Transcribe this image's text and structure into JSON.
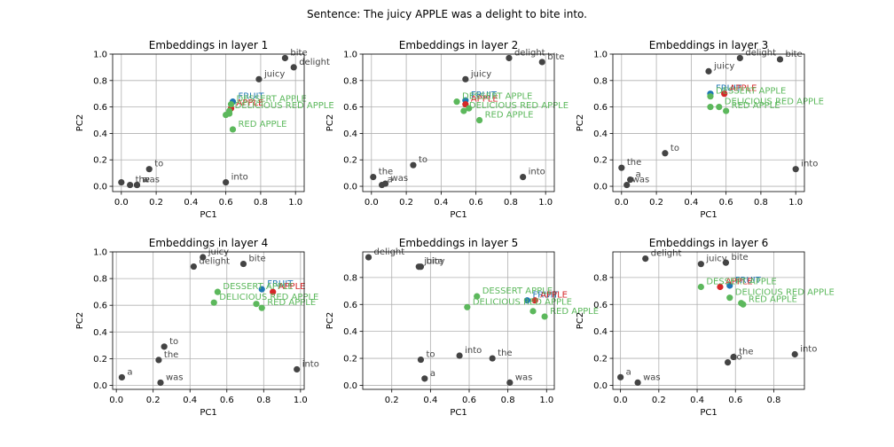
{
  "figure": {
    "title": "Sentence: The juicy APPLE was a delight to bite into."
  },
  "colors": {
    "word": "#444444",
    "fruit": "#1f77b4",
    "apple": "#d62728",
    "phrase": "#5cb85c"
  },
  "chart_data": [
    {
      "type": "scatter",
      "title": "Embeddings in layer 1",
      "xlabel": "PC1",
      "ylabel": "PC2",
      "xlim": [
        -0.05,
        1.05
      ],
      "ylim": [
        -0.04,
        1.0
      ],
      "xticks": [
        0.0,
        0.2,
        0.4,
        0.6,
        0.8,
        1.0
      ],
      "xtick_labels": [
        "0.0",
        "0.2",
        "0.4",
        "0.6",
        "0.8",
        "1.0"
      ],
      "yticks": [
        0.0,
        0.2,
        0.4,
        0.6,
        0.8,
        1.0
      ],
      "ytick_labels": [
        "0.0",
        "0.2",
        "0.4",
        "0.6",
        "0.8",
        "1.0"
      ],
      "grid": true,
      "points": [
        {
          "label": "the",
          "x": 0.05,
          "y": 0.01,
          "kind": "word"
        },
        {
          "label": "",
          "x": 0.0,
          "y": 0.03,
          "kind": "word"
        },
        {
          "label": "a",
          "x": 0.09,
          "y": 0.01,
          "kind": "word"
        },
        {
          "label": "was",
          "x": 0.09,
          "y": 0.01,
          "kind": "word"
        },
        {
          "label": "to",
          "x": 0.16,
          "y": 0.13,
          "kind": "word"
        },
        {
          "label": "into",
          "x": 0.6,
          "y": 0.03,
          "kind": "word"
        },
        {
          "label": "juicy",
          "x": 0.79,
          "y": 0.81,
          "kind": "word"
        },
        {
          "label": "bite",
          "x": 0.94,
          "y": 0.97,
          "kind": "word"
        },
        {
          "label": "delight",
          "x": 0.99,
          "y": 0.9,
          "kind": "word"
        },
        {
          "label": "FRUIT",
          "x": 0.64,
          "y": 0.64,
          "kind": "fruit"
        },
        {
          "label": "APPLE",
          "x": 0.63,
          "y": 0.59,
          "kind": "apple"
        },
        {
          "label": "DESSERT APPLE",
          "x": 0.63,
          "y": 0.62,
          "kind": "phrase"
        },
        {
          "label": "DELICIOUS RED APPLE",
          "x": 0.62,
          "y": 0.57,
          "kind": "phrase"
        },
        {
          "label": "",
          "x": 0.6,
          "y": 0.54,
          "kind": "phrase"
        },
        {
          "label": "",
          "x": 0.62,
          "y": 0.55,
          "kind": "phrase"
        },
        {
          "label": "RED APPLE",
          "x": 0.64,
          "y": 0.43,
          "kind": "phrase"
        }
      ]
    },
    {
      "type": "scatter",
      "title": "Embeddings in layer 2",
      "xlabel": "PC1",
      "ylabel": "PC2",
      "xlim": [
        -0.05,
        1.05
      ],
      "ylim": [
        -0.04,
        1.0
      ],
      "xticks": [
        0.0,
        0.2,
        0.4,
        0.6,
        0.8,
        1.0
      ],
      "xtick_labels": [
        "0.0",
        "0.2",
        "0.4",
        "0.6",
        "0.8",
        "1.0"
      ],
      "yticks": [
        0.0,
        0.2,
        0.4,
        0.6,
        0.8,
        1.0
      ],
      "ytick_labels": [
        "0.0",
        "0.2",
        "0.4",
        "0.6",
        "0.8",
        "1.0"
      ],
      "grid": true,
      "points": [
        {
          "label": "the",
          "x": 0.01,
          "y": 0.07,
          "kind": "word"
        },
        {
          "label": "a",
          "x": 0.06,
          "y": 0.01,
          "kind": "word"
        },
        {
          "label": "was",
          "x": 0.08,
          "y": 0.02,
          "kind": "word"
        },
        {
          "label": "to",
          "x": 0.24,
          "y": 0.16,
          "kind": "word"
        },
        {
          "label": "juicy",
          "x": 0.54,
          "y": 0.81,
          "kind": "word"
        },
        {
          "label": "delight",
          "x": 0.79,
          "y": 0.97,
          "kind": "word"
        },
        {
          "label": "bite",
          "x": 0.98,
          "y": 0.94,
          "kind": "word"
        },
        {
          "label": "into",
          "x": 0.87,
          "y": 0.07,
          "kind": "word"
        },
        {
          "label": "FRUIT",
          "x": 0.54,
          "y": 0.65,
          "kind": "fruit"
        },
        {
          "label": "APPLE",
          "x": 0.54,
          "y": 0.62,
          "kind": "apple"
        },
        {
          "label": "DESSERT APPLE",
          "x": 0.49,
          "y": 0.64,
          "kind": "phrase"
        },
        {
          "label": "DELICIOUS RED APPLE",
          "x": 0.53,
          "y": 0.57,
          "kind": "phrase"
        },
        {
          "label": "",
          "x": 0.56,
          "y": 0.59,
          "kind": "phrase"
        },
        {
          "label": "RED APPLE",
          "x": 0.62,
          "y": 0.5,
          "kind": "phrase"
        }
      ]
    },
    {
      "type": "scatter",
      "title": "Embeddings in layer 3",
      "xlabel": "PC1",
      "ylabel": "PC2",
      "xlim": [
        -0.05,
        1.05
      ],
      "ylim": [
        -0.04,
        1.0
      ],
      "xticks": [
        0.0,
        0.2,
        0.4,
        0.6,
        0.8,
        1.0
      ],
      "xtick_labels": [
        "0.0",
        "0.2",
        "0.4",
        "0.6",
        "0.8",
        "1.0"
      ],
      "yticks": [
        0.0,
        0.2,
        0.4,
        0.6,
        0.8,
        1.0
      ],
      "ytick_labels": [
        "0.0",
        "0.2",
        "0.4",
        "0.6",
        "0.8",
        "1.0"
      ],
      "grid": true,
      "points": [
        {
          "label": "the",
          "x": 0.0,
          "y": 0.14,
          "kind": "word"
        },
        {
          "label": "a",
          "x": 0.05,
          "y": 0.05,
          "kind": "word"
        },
        {
          "label": "was",
          "x": 0.03,
          "y": 0.01,
          "kind": "word"
        },
        {
          "label": "to",
          "x": 0.25,
          "y": 0.25,
          "kind": "word"
        },
        {
          "label": "juicy",
          "x": 0.5,
          "y": 0.87,
          "kind": "word"
        },
        {
          "label": "delight",
          "x": 0.68,
          "y": 0.97,
          "kind": "word"
        },
        {
          "label": "bite",
          "x": 0.91,
          "y": 0.96,
          "kind": "word"
        },
        {
          "label": "into",
          "x": 1.0,
          "y": 0.13,
          "kind": "word"
        },
        {
          "label": "FRUIT",
          "x": 0.51,
          "y": 0.7,
          "kind": "fruit"
        },
        {
          "label": "APPLE",
          "x": 0.59,
          "y": 0.7,
          "kind": "apple"
        },
        {
          "label": "DESSERT APPLE",
          "x": 0.51,
          "y": 0.68,
          "kind": "phrase"
        },
        {
          "label": "DELICIOUS RED APPLE",
          "x": 0.56,
          "y": 0.6,
          "kind": "phrase"
        },
        {
          "label": "",
          "x": 0.51,
          "y": 0.6,
          "kind": "phrase"
        },
        {
          "label": "RED APPLE",
          "x": 0.6,
          "y": 0.57,
          "kind": "phrase"
        }
      ]
    },
    {
      "type": "scatter",
      "title": "Embeddings in layer 4",
      "xlabel": "PC1",
      "ylabel": "PC2",
      "xlim": [
        -0.02,
        1.02
      ],
      "ylim": [
        -0.03,
        1.0
      ],
      "xticks": [
        0.0,
        0.2,
        0.4,
        0.6,
        0.8,
        1.0
      ],
      "xtick_labels": [
        "0.0",
        "0.2",
        "0.4",
        "0.6",
        "0.8",
        "1.0"
      ],
      "yticks": [
        0.0,
        0.2,
        0.4,
        0.6,
        0.8,
        1.0
      ],
      "ytick_labels": [
        "0.0",
        "0.2",
        "0.4",
        "0.6",
        "0.8",
        "1.0"
      ],
      "grid": true,
      "points": [
        {
          "label": "a",
          "x": 0.03,
          "y": 0.06,
          "kind": "word"
        },
        {
          "label": "was",
          "x": 0.24,
          "y": 0.02,
          "kind": "word"
        },
        {
          "label": "the",
          "x": 0.23,
          "y": 0.19,
          "kind": "word"
        },
        {
          "label": "to",
          "x": 0.26,
          "y": 0.29,
          "kind": "word"
        },
        {
          "label": "juicy",
          "x": 0.47,
          "y": 0.96,
          "kind": "word"
        },
        {
          "label": "delight",
          "x": 0.42,
          "y": 0.89,
          "kind": "word"
        },
        {
          "label": "bite",
          "x": 0.69,
          "y": 0.91,
          "kind": "word"
        },
        {
          "label": "into",
          "x": 0.98,
          "y": 0.12,
          "kind": "word"
        },
        {
          "label": "FRUIT",
          "x": 0.79,
          "y": 0.72,
          "kind": "fruit"
        },
        {
          "label": "APPLE",
          "x": 0.85,
          "y": 0.7,
          "kind": "apple"
        },
        {
          "label": "DESSERT APPLE",
          "x": 0.55,
          "y": 0.7,
          "kind": "phrase"
        },
        {
          "label": "DELICIOUS RED APPLE",
          "x": 0.53,
          "y": 0.62,
          "kind": "phrase"
        },
        {
          "label": "",
          "x": 0.76,
          "y": 0.61,
          "kind": "phrase"
        },
        {
          "label": "RED APPLE",
          "x": 0.79,
          "y": 0.58,
          "kind": "phrase"
        }
      ]
    },
    {
      "type": "scatter",
      "title": "Embeddings in layer 5",
      "xlabel": "PC1",
      "ylabel": "PC2",
      "xlim": [
        0.05,
        1.04
      ],
      "ylim": [
        -0.03,
        0.99
      ],
      "xticks": [
        0.2,
        0.4,
        0.6,
        0.8,
        1.0
      ],
      "xtick_labels": [
        "0.2",
        "0.4",
        "0.6",
        "0.8",
        "1.0"
      ],
      "yticks": [
        0.0,
        0.2,
        0.4,
        0.6,
        0.8
      ],
      "ytick_labels": [
        "0.0",
        "0.2",
        "0.4",
        "0.6",
        "0.8"
      ],
      "grid": true,
      "points": [
        {
          "label": "delight",
          "x": 0.08,
          "y": 0.95,
          "kind": "word"
        },
        {
          "label": "juicy",
          "x": 0.34,
          "y": 0.88,
          "kind": "word"
        },
        {
          "label": "bite",
          "x": 0.35,
          "y": 0.88,
          "kind": "word"
        },
        {
          "label": "to",
          "x": 0.35,
          "y": 0.19,
          "kind": "word"
        },
        {
          "label": "a",
          "x": 0.37,
          "y": 0.05,
          "kind": "word"
        },
        {
          "label": "into",
          "x": 0.55,
          "y": 0.22,
          "kind": "word"
        },
        {
          "label": "the",
          "x": 0.72,
          "y": 0.2,
          "kind": "word"
        },
        {
          "label": "was",
          "x": 0.81,
          "y": 0.02,
          "kind": "word"
        },
        {
          "label": "FRUIT",
          "x": 0.9,
          "y": 0.63,
          "kind": "fruit"
        },
        {
          "label": "APPLE",
          "x": 0.94,
          "y": 0.63,
          "kind": "apple"
        },
        {
          "label": "DESSERT APPLE",
          "x": 0.64,
          "y": 0.66,
          "kind": "phrase"
        },
        {
          "label": "DELICIOUS RED APPLE",
          "x": 0.59,
          "y": 0.58,
          "kind": "phrase"
        },
        {
          "label": "",
          "x": 0.93,
          "y": 0.55,
          "kind": "phrase"
        },
        {
          "label": "RED APPLE",
          "x": 0.99,
          "y": 0.51,
          "kind": "phrase"
        }
      ]
    },
    {
      "type": "scatter",
      "title": "Embeddings in layer 6",
      "xlabel": "PC1",
      "ylabel": "PC2",
      "xlim": [
        -0.04,
        0.96
      ],
      "ylim": [
        -0.03,
        0.99
      ],
      "xticks": [
        0.0,
        0.2,
        0.4,
        0.6,
        0.8
      ],
      "xtick_labels": [
        "0.0",
        "0.2",
        "0.4",
        "0.6",
        "0.8"
      ],
      "yticks": [
        0.0,
        0.2,
        0.4,
        0.6,
        0.8
      ],
      "ytick_labels": [
        "0.0",
        "0.2",
        "0.4",
        "0.6",
        "0.8"
      ],
      "grid": true,
      "points": [
        {
          "label": "a",
          "x": 0.0,
          "y": 0.06,
          "kind": "word"
        },
        {
          "label": "was",
          "x": 0.09,
          "y": 0.02,
          "kind": "word"
        },
        {
          "label": "delight",
          "x": 0.13,
          "y": 0.94,
          "kind": "word"
        },
        {
          "label": "juicy",
          "x": 0.42,
          "y": 0.9,
          "kind": "word"
        },
        {
          "label": "bite",
          "x": 0.55,
          "y": 0.91,
          "kind": "word"
        },
        {
          "label": "the",
          "x": 0.59,
          "y": 0.21,
          "kind": "word"
        },
        {
          "label": "to",
          "x": 0.56,
          "y": 0.17,
          "kind": "word"
        },
        {
          "label": "into",
          "x": 0.91,
          "y": 0.23,
          "kind": "word"
        },
        {
          "label": "FRUIT",
          "x": 0.57,
          "y": 0.74,
          "kind": "fruit"
        },
        {
          "label": "APPLE",
          "x": 0.52,
          "y": 0.73,
          "kind": "apple"
        },
        {
          "label": "DESSERT APPLE",
          "x": 0.42,
          "y": 0.73,
          "kind": "phrase"
        },
        {
          "label": "DELICIOUS RED APPLE",
          "x": 0.57,
          "y": 0.65,
          "kind": "phrase"
        },
        {
          "label": "",
          "x": 0.63,
          "y": 0.61,
          "kind": "phrase"
        },
        {
          "label": "RED APPLE",
          "x": 0.64,
          "y": 0.6,
          "kind": "phrase"
        }
      ]
    }
  ]
}
